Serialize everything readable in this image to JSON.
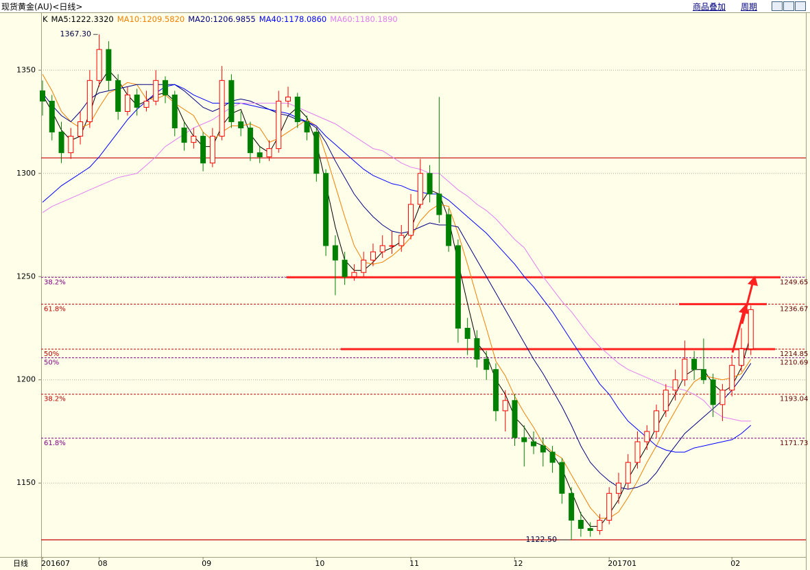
{
  "header": {
    "title": "现货黄金(AU)<日线>",
    "overlay": "商品叠加",
    "period": "周期"
  },
  "chart_data": {
    "type": "candlestick",
    "indicator": "K",
    "x_axis_label": "日线",
    "categories": [
      "201607",
      null,
      null,
      null,
      null,
      null,
      "08",
      null,
      null,
      null,
      null,
      null,
      null,
      null,
      null,
      null,
      null,
      "09",
      null,
      null,
      null,
      null,
      null,
      null,
      null,
      null,
      null,
      null,
      null,
      "10",
      null,
      null,
      null,
      null,
      null,
      null,
      null,
      null,
      null,
      "11",
      null,
      null,
      null,
      null,
      null,
      null,
      null,
      null,
      null,
      null,
      "12",
      null,
      null,
      null,
      null,
      null,
      null,
      null,
      null,
      null,
      "201701",
      null,
      null,
      null,
      null,
      null,
      null,
      null,
      null,
      null,
      null,
      null,
      null,
      "02",
      null,
      null
    ],
    "candles": [
      [
        1340,
        1345,
        1328,
        1335
      ],
      [
        1335,
        1338,
        1316,
        1320
      ],
      [
        1320,
        1325,
        1305,
        1310
      ],
      [
        1310,
        1322,
        1307,
        1318
      ],
      [
        1318,
        1330,
        1314,
        1325
      ],
      [
        1325,
        1350,
        1322,
        1345
      ],
      [
        1345,
        1367.3,
        1342,
        1360
      ],
      [
        1360,
        1364,
        1340,
        1345
      ],
      [
        1345,
        1348,
        1326,
        1330
      ],
      [
        1330,
        1342,
        1328,
        1338
      ],
      [
        1338,
        1341,
        1328,
        1332
      ],
      [
        1332,
        1340,
        1330,
        1335
      ],
      [
        1335,
        1350,
        1333,
        1345
      ],
      [
        1345,
        1347,
        1334,
        1338
      ],
      [
        1338,
        1340,
        1318,
        1322
      ],
      [
        1322,
        1325,
        1311,
        1315
      ],
      [
        1315,
        1322,
        1312,
        1318
      ],
      [
        1318,
        1320,
        1301,
        1305
      ],
      [
        1305,
        1322,
        1303,
        1318
      ],
      [
        1318,
        1352,
        1316,
        1345
      ],
      [
        1345,
        1348,
        1322,
        1325
      ],
      [
        1325,
        1330,
        1318,
        1322
      ],
      [
        1322,
        1325,
        1306,
        1310
      ],
      [
        1310,
        1313,
        1305,
        1308
      ],
      [
        1308,
        1316,
        1306,
        1312
      ],
      [
        1312,
        1340,
        1310,
        1335
      ],
      [
        1335,
        1342,
        1332,
        1337
      ],
      [
        1337,
        1339,
        1322,
        1325
      ],
      [
        1325,
        1328,
        1316,
        1320
      ],
      [
        1320,
        1322,
        1296,
        1300
      ],
      [
        1300,
        1302,
        1260,
        1265
      ],
      [
        1265,
        1270,
        1241,
        1258
      ],
      [
        1258,
        1262,
        1246,
        1250
      ],
      [
        1250,
        1256,
        1248,
        1252
      ],
      [
        1252,
        1262,
        1250,
        1258
      ],
      [
        1258,
        1266,
        1255,
        1262
      ],
      [
        1262,
        1270,
        1259,
        1265
      ],
      [
        1265,
        1272,
        1261,
        1265
      ],
      [
        1265,
        1275,
        1262,
        1270
      ],
      [
        1270,
        1290,
        1268,
        1285
      ],
      [
        1285,
        1307,
        1283,
        1300
      ],
      [
        1300,
        1304,
        1286,
        1290
      ],
      [
        1290,
        1337,
        1276,
        1280
      ],
      [
        1280,
        1283,
        1262,
        1265
      ],
      [
        1265,
        1268,
        1218,
        1225
      ],
      [
        1225,
        1230,
        1212,
        1220
      ],
      [
        1220,
        1224,
        1206,
        1210
      ],
      [
        1210,
        1214,
        1200,
        1205
      ],
      [
        1205,
        1208,
        1180,
        1185
      ],
      [
        1185,
        1195,
        1175,
        1190
      ],
      [
        1190,
        1193,
        1168,
        1172
      ],
      [
        1172,
        1178,
        1158,
        1170
      ],
      [
        1170,
        1175,
        1164,
        1168
      ],
      [
        1168,
        1172,
        1158,
        1165
      ],
      [
        1165,
        1168,
        1155,
        1160
      ],
      [
        1160,
        1162,
        1140,
        1145
      ],
      [
        1145,
        1148,
        1122.5,
        1132
      ],
      [
        1132,
        1136,
        1124,
        1128
      ],
      [
        1128,
        1131,
        1124,
        1127
      ],
      [
        1127,
        1135,
        1125,
        1132
      ],
      [
        1132,
        1148,
        1130,
        1145
      ],
      [
        1145,
        1155,
        1140,
        1150
      ],
      [
        1150,
        1164,
        1147,
        1160
      ],
      [
        1160,
        1175,
        1157,
        1170
      ],
      [
        1170,
        1178,
        1166,
        1175
      ],
      [
        1175,
        1188,
        1172,
        1185
      ],
      [
        1185,
        1198,
        1182,
        1195
      ],
      [
        1195,
        1205,
        1190,
        1200
      ],
      [
        1200,
        1219,
        1197,
        1210
      ],
      [
        1210,
        1214,
        1200,
        1205
      ],
      [
        1205,
        1220,
        1198,
        1200
      ],
      [
        1200,
        1203,
        1182,
        1188
      ],
      [
        1188,
        1198,
        1180,
        1195
      ],
      [
        1195,
        1212,
        1192,
        1207
      ],
      [
        1207,
        1225,
        1204,
        1215
      ],
      [
        1215,
        1236,
        1212,
        1234
      ]
    ],
    "up_color": "#ff0000",
    "down_color": "#008000",
    "series": [
      {
        "name": "MA5:1222.3320",
        "color": "#000000",
        "values": [
          1338,
          1330,
          1321,
          1316,
          1318,
          1329,
          1343,
          1350,
          1345,
          1338,
          1333,
          1335,
          1338,
          1339,
          1335,
          1325,
          1318,
          1313,
          1313,
          1323,
          1329,
          1331,
          1319,
          1313,
          1310,
          1318,
          1328,
          1332,
          1327,
          1315,
          1295,
          1274,
          1258,
          1253,
          1253,
          1257,
          1262,
          1264,
          1267,
          1273,
          1285,
          1292,
          1290,
          1278,
          1257,
          1237,
          1218,
          1212,
          1200,
          1193,
          1182,
          1177,
          1170,
          1168,
          1164,
          1157,
          1146,
          1135,
          1129,
          1129,
          1135,
          1142,
          1152,
          1160,
          1168,
          1177,
          1185,
          1193,
          1202,
          1205,
          1205,
          1198,
          1194,
          1197,
          1206,
          1222
        ]
      },
      {
        "name": "MA10:1209.5820",
        "color": "#f08000",
        "values": [
          1348,
          1340,
          1330,
          1325,
          1322,
          1324,
          1332,
          1339,
          1341,
          1344,
          1343,
          1336,
          1336,
          1338,
          1334,
          1331,
          1328,
          1320,
          1316,
          1320,
          1323,
          1323,
          1324,
          1322,
          1315,
          1317,
          1320,
          1323,
          1326,
          1323,
          1309,
          1294,
          1279,
          1265,
          1257,
          1256,
          1257,
          1260,
          1264,
          1269,
          1277,
          1282,
          1285,
          1284,
          1271,
          1256,
          1240,
          1225,
          1209,
          1202,
          1192,
          1184,
          1177,
          1169,
          1165,
          1162,
          1154,
          1146,
          1138,
          1133,
          1133,
          1136,
          1143,
          1151,
          1160,
          1168,
          1177,
          1185,
          1193,
          1199,
          1202,
          1201,
          1200,
          1201,
          1203,
          1210
        ]
      },
      {
        "name": "MA20:1206.9855",
        "color": "#000080",
        "values": [
          1339,
          1333,
          1328,
          1325,
          1330,
          1336,
          1339,
          1340,
          1341,
          1342,
          1343,
          1343,
          1343,
          1343,
          1343,
          1340,
          1336,
          1332,
          1330,
          1332,
          1335,
          1336,
          1335,
          1333,
          1331,
          1329,
          1328,
          1326,
          1325,
          1322,
          1315,
          1306,
          1298,
          1290,
          1284,
          1279,
          1275,
          1272,
          1271,
          1272,
          1274,
          1276,
          1275,
          1275,
          1274,
          1266,
          1258,
          1250,
          1242,
          1234,
          1226,
          1218,
          1210,
          1203,
          1195,
          1187,
          1178,
          1168,
          1160,
          1155,
          1151,
          1148,
          1147,
          1148,
          1150,
          1155,
          1162,
          1168,
          1174,
          1178,
          1182,
          1186,
          1190,
          1195,
          1201,
          1208
        ]
      },
      {
        "name": "MA40:1178.0860",
        "color": "#0000ff",
        "values": [
          1286,
          1290,
          1294,
          1297,
          1300,
          1303,
          1308,
          1314,
          1320,
          1326,
          1331,
          1335,
          1339,
          1342,
          1343,
          1341,
          1338,
          1336,
          1334,
          1334,
          1334,
          1334,
          1333,
          1332,
          1331,
          1330,
          1329,
          1327,
          1325,
          1323,
          1318,
          1314,
          1310,
          1306,
          1302,
          1299,
          1297,
          1295,
          1294,
          1292,
          1291,
          1290,
          1290,
          1287,
          1283,
          1279,
          1275,
          1271,
          1266,
          1261,
          1256,
          1250,
          1245,
          1239,
          1233,
          1226,
          1219,
          1212,
          1205,
          1198,
          1193,
          1186,
          1180,
          1176,
          1172,
          1168,
          1166,
          1165,
          1165,
          1167,
          1168,
          1169,
          1170,
          1171,
          1174,
          1178
        ]
      },
      {
        "name": "MA60:1180.1890",
        "color": "#e080f0",
        "values": [
          1281,
          1284,
          1286,
          1288,
          1290,
          1292,
          1294,
          1296,
          1298,
          1299,
          1300,
          1304,
          1308,
          1313,
          1316,
          1319,
          1322,
          1324,
          1326,
          1329,
          1332,
          1334,
          1334,
          1334,
          1334,
          1334,
          1334,
          1332,
          1330,
          1328,
          1326,
          1324,
          1321,
          1318,
          1315,
          1312,
          1311,
          1308,
          1305,
          1303,
          1302,
          1300,
          1300,
          1296,
          1292,
          1289,
          1285,
          1282,
          1278,
          1273,
          1268,
          1264,
          1257,
          1250,
          1244,
          1238,
          1233,
          1227,
          1221,
          1216,
          1212,
          1208,
          1205,
          1203,
          1201,
          1199,
          1197,
          1196,
          1195,
          1193,
          1190,
          1185,
          1182,
          1181,
          1180,
          1180
        ]
      }
    ],
    "ylim": [
      1122.5,
      1378
    ],
    "yticks": [
      1150,
      1200,
      1250,
      1300,
      1350
    ],
    "grid": true,
    "levels": [
      {
        "value": 1249.65,
        "label": "38.2%",
        "color": "#800080"
      },
      {
        "value": 1236.67,
        "label": "61.8%",
        "color": "#c00000"
      },
      {
        "value": 1214.85,
        "label": "50%",
        "color": "#c00000"
      },
      {
        "value": 1210.69,
        "label": "50%",
        "color": "#800080"
      },
      {
        "value": 1193.04,
        "label": "38.2%",
        "color": "#c00000"
      },
      {
        "value": 1171.73,
        "label": "61.8%",
        "color": "#800080"
      }
    ],
    "solid_lines": [
      1307.5,
      1122.5
    ],
    "solid_line_color": "#c00000",
    "annotations": [
      {
        "value": 1367.3,
        "label": "1367.30"
      },
      {
        "value": 1122.5,
        "label": "1122.50"
      }
    ]
  }
}
